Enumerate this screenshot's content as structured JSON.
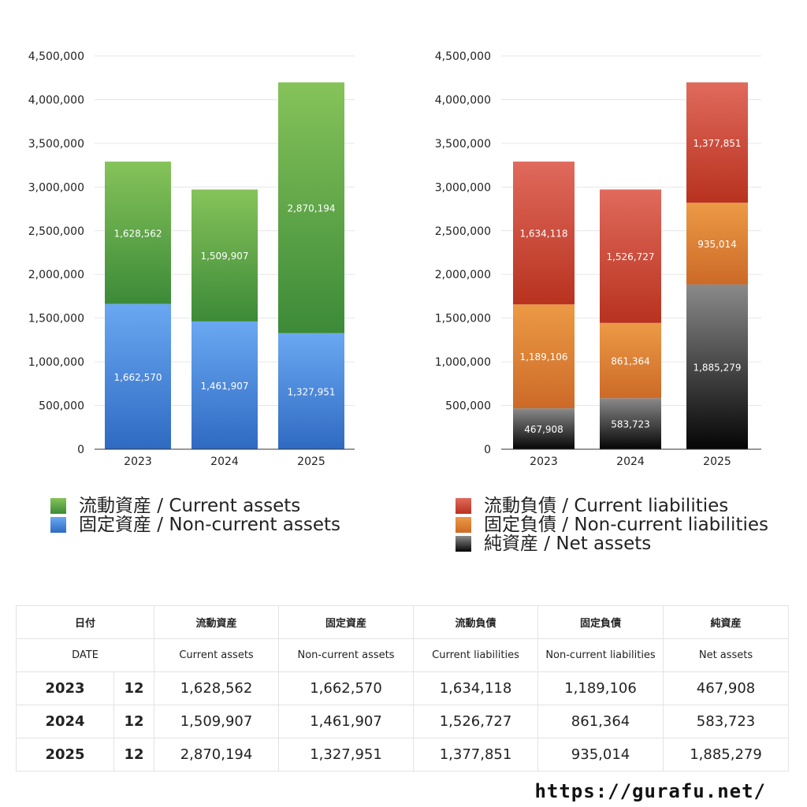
{
  "chart_data": [
    {
      "type": "bar",
      "stacked": true,
      "categories": [
        "2023",
        "2024",
        "2025"
      ],
      "ylim": [
        0,
        4500000
      ],
      "yticks": [
        0,
        500000,
        1000000,
        1500000,
        2000000,
        2500000,
        3000000,
        3500000,
        4000000,
        4500000
      ],
      "ytick_labels": [
        "0",
        "500,000",
        "1,000,000",
        "1,500,000",
        "2,000,000",
        "2,500,000",
        "3,000,000",
        "3,500,000",
        "4,000,000",
        "4,500,000"
      ],
      "grid": true,
      "legend_position": "bottom",
      "series": [
        {
          "name": "固定資産 / Non-current assets",
          "values": [
            1662570,
            1461907,
            1327951
          ],
          "labels": [
            "1,662,570",
            "1,461,907",
            "1,327,951"
          ],
          "color_top": "#6aa8f2",
          "color_bottom": "#2f6ac2"
        },
        {
          "name": "流動資産 / Current assets",
          "values": [
            1628562,
            1509907,
            2870194
          ],
          "labels": [
            "1,628,562",
            "1,509,907",
            "2,870,194"
          ],
          "color_top": "#86c35a",
          "color_bottom": "#3c8a38"
        }
      ]
    },
    {
      "type": "bar",
      "stacked": true,
      "categories": [
        "2023",
        "2024",
        "2025"
      ],
      "ylim": [
        0,
        4500000
      ],
      "yticks": [
        0,
        500000,
        1000000,
        1500000,
        2000000,
        2500000,
        3000000,
        3500000,
        4000000,
        4500000
      ],
      "ytick_labels": [
        "0",
        "500,000",
        "1,000,000",
        "1,500,000",
        "2,000,000",
        "2,500,000",
        "3,000,000",
        "3,500,000",
        "4,000,000",
        "4,500,000"
      ],
      "grid": true,
      "legend_position": "bottom",
      "series": [
        {
          "name": "純資産 / Net assets",
          "values": [
            467908,
            583723,
            1885279
          ],
          "labels": [
            "467,908",
            "583,723",
            "1,885,279"
          ],
          "color_top": "#8a8a8a",
          "color_bottom": "#050505"
        },
        {
          "name": "固定負債 / Non-current liabilities",
          "values": [
            1189106,
            861364,
            935014
          ],
          "labels": [
            "1,189,106",
            "861,364",
            "935,014"
          ],
          "color_top": "#ec9a45",
          "color_bottom": "#cc6a28"
        },
        {
          "name": "流動負債 / Current liabilities",
          "values": [
            1634118,
            1526727,
            1377851
          ],
          "labels": [
            "1,634,118",
            "1,526,727",
            "1,377,851"
          ],
          "color_top": "#e06a5c",
          "color_bottom": "#b8321f"
        }
      ]
    }
  ],
  "legends": [
    [
      {
        "label": "流動資産 / Current assets",
        "color_top": "#86c35a",
        "color_bottom": "#3c8a38"
      },
      {
        "label": "固定資産 / Non-current assets",
        "color_top": "#6aa8f2",
        "color_bottom": "#2f6ac2"
      }
    ],
    [
      {
        "label": "流動負債 / Current liabilities",
        "color_top": "#e06a5c",
        "color_bottom": "#b8321f"
      },
      {
        "label": "固定負債 / Non-current liabilities",
        "color_top": "#ec9a45",
        "color_bottom": "#cc6a28"
      },
      {
        "label": "純資産 / Net assets",
        "color_top": "#8a8a8a",
        "color_bottom": "#050505"
      }
    ]
  ],
  "table": {
    "header_jp": {
      "date": "日付",
      "ca": "流動資産",
      "nca": "固定資産",
      "cl": "流動負債",
      "ncl": "固定負債",
      "na": "純資産"
    },
    "header_en": {
      "date": "DATE",
      "ca": "Current assets",
      "nca": "Non-current assets",
      "cl": "Current liabilities",
      "ncl": "Non-current liabilities",
      "na": "Net assets"
    },
    "rows": [
      {
        "year": "2023",
        "month": "12",
        "ca": "1,628,562",
        "nca": "1,662,570",
        "cl": "1,634,118",
        "ncl": "1,189,106",
        "na": "467,908"
      },
      {
        "year": "2024",
        "month": "12",
        "ca": "1,509,907",
        "nca": "1,461,907",
        "cl": "1,526,727",
        "ncl": "861,364",
        "na": "583,723"
      },
      {
        "year": "2025",
        "month": "12",
        "ca": "2,870,194",
        "nca": "1,327,951",
        "cl": "1,377,851",
        "ncl": "935,014",
        "na": "1,885,279"
      }
    ]
  },
  "site_url": "https://gurafu.net/"
}
